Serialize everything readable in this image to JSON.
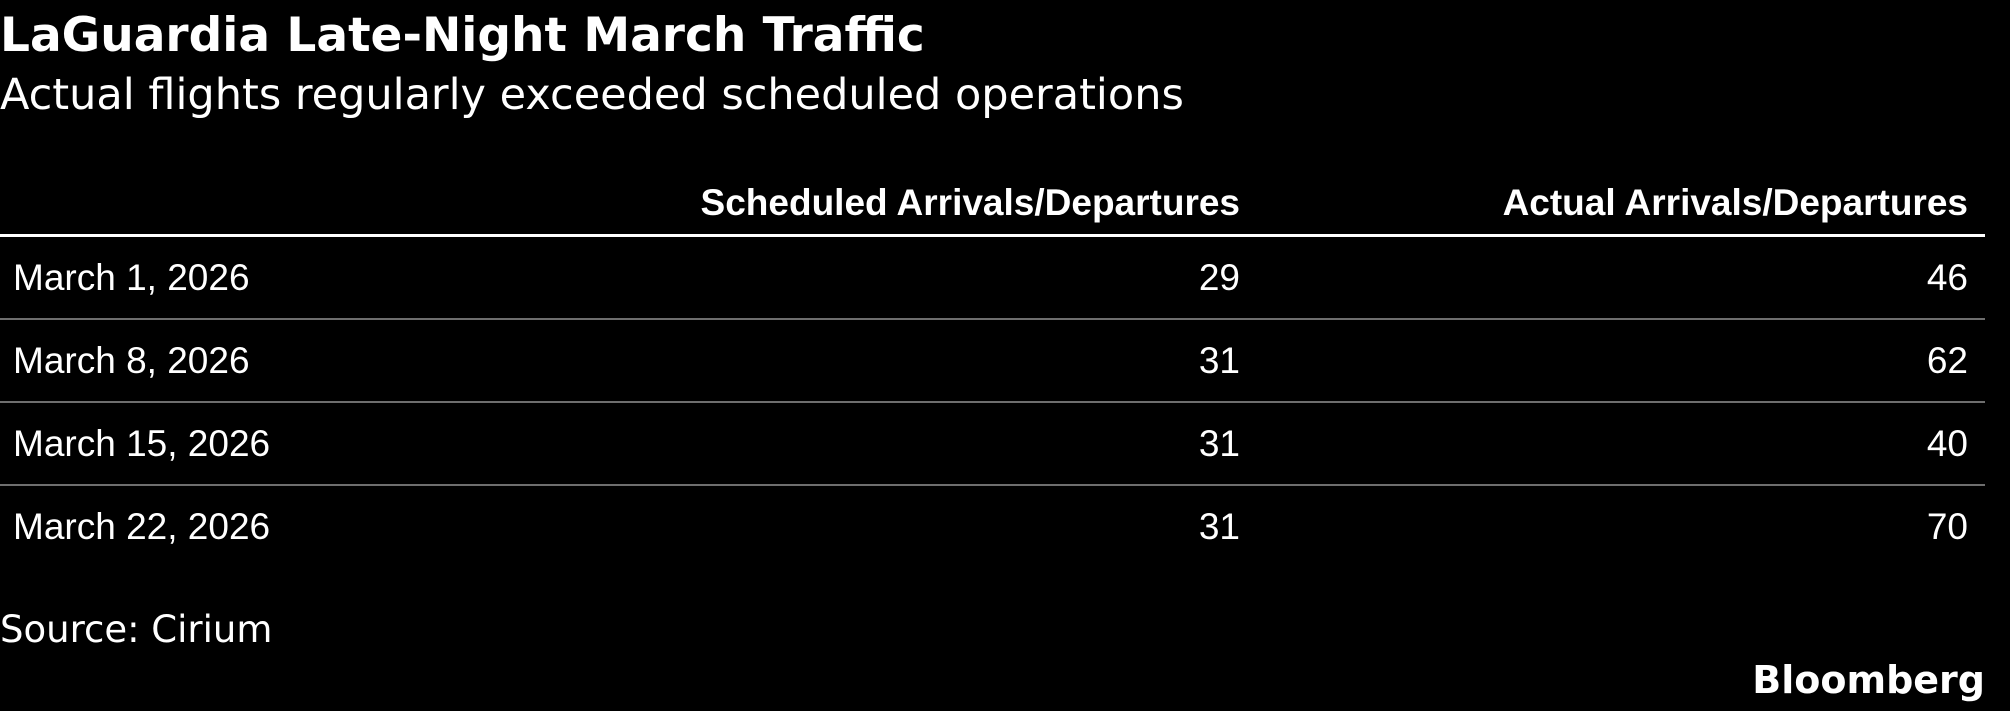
{
  "chart_data": {
    "type": "table",
    "title": "LaGuardia Late-Night March Traffic",
    "subtitle": "Actual flights regularly exceeded scheduled operations",
    "columns": [
      "",
      "Scheduled Arrivals/Departures",
      "Actual Arrivals/Departures"
    ],
    "rows": [
      {
        "date": "March 1, 2026",
        "scheduled": "29",
        "actual": "46"
      },
      {
        "date": "March 8, 2026",
        "scheduled": "31",
        "actual": "62"
      },
      {
        "date": "March 15, 2026",
        "scheduled": "31",
        "actual": "40"
      },
      {
        "date": "March 22, 2026",
        "scheduled": "31",
        "actual": "70"
      }
    ],
    "source": "Source: Cirium",
    "brand": "Bloomberg"
  },
  "colors": {
    "background": "#000000",
    "text": "#ffffff",
    "divider": "#6e6e6e"
  }
}
